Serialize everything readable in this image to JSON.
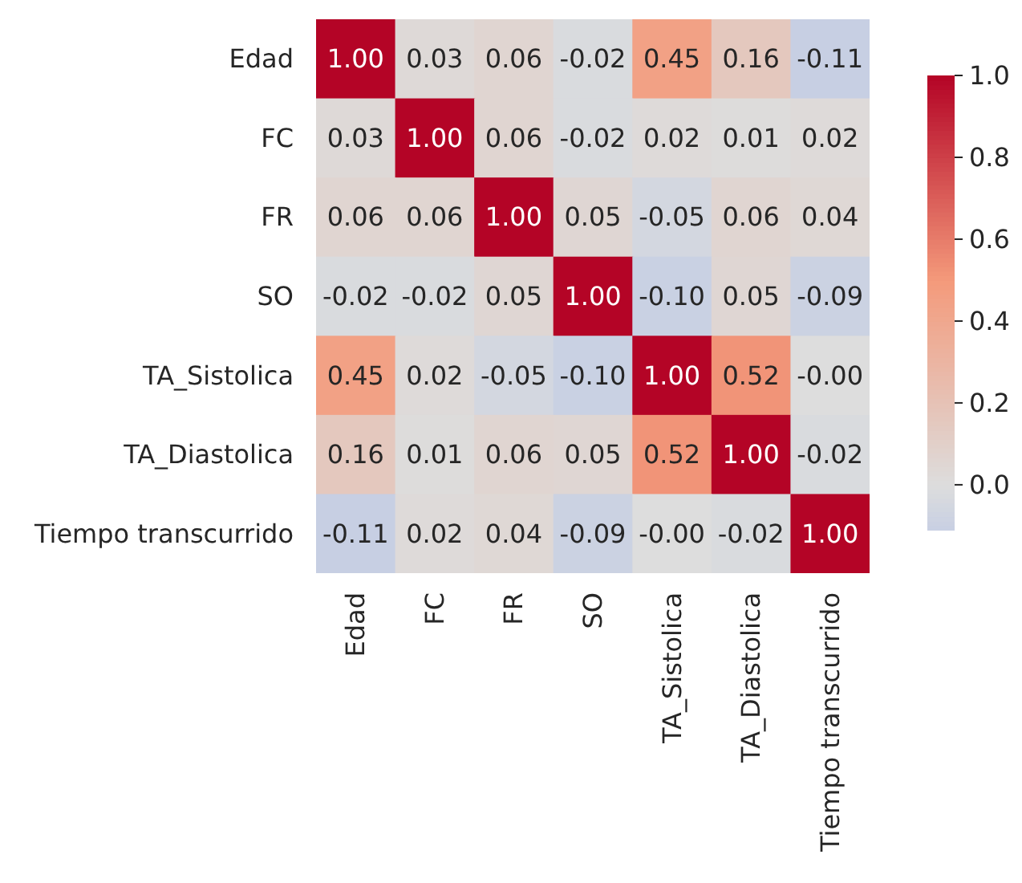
{
  "chart_data": {
    "type": "heatmap",
    "categories": [
      "Edad",
      "FC",
      "FR",
      "SO",
      "TA_Sistolica",
      "TA_Diastolica",
      "Tiempo transcurrido"
    ],
    "y_categories": [
      "Edad",
      "FC",
      "FR",
      "SO",
      "TA_Sistolica",
      "TA_Diastolica",
      "Tiempo transcurrido"
    ],
    "cells": [
      [
        1.0,
        0.03,
        0.06,
        -0.02,
        0.45,
        0.16,
        -0.11
      ],
      [
        0.03,
        1.0,
        0.06,
        -0.02,
        0.02,
        0.01,
        0.02
      ],
      [
        0.06,
        0.06,
        1.0,
        0.05,
        -0.05,
        0.06,
        0.04
      ],
      [
        -0.02,
        -0.02,
        0.05,
        1.0,
        -0.1,
        0.05,
        -0.09
      ],
      [
        0.45,
        0.02,
        -0.05,
        -0.1,
        1.0,
        0.52,
        0
      ],
      [
        0.16,
        0.01,
        0.06,
        0.05,
        0.52,
        1.0,
        -0.02
      ],
      [
        -0.11,
        0.02,
        0.04,
        -0.09,
        0,
        -0.02,
        1.0
      ]
    ],
    "cell_labels": [
      [
        "1.00",
        "0.03",
        "0.06",
        "-0.02",
        "0.45",
        "0.16",
        "-0.11"
      ],
      [
        "0.03",
        "1.00",
        "0.06",
        "-0.02",
        "0.02",
        "0.01",
        "0.02"
      ],
      [
        "0.06",
        "0.06",
        "1.00",
        "0.05",
        "-0.05",
        "0.06",
        "0.04"
      ],
      [
        "-0.02",
        "-0.02",
        "0.05",
        "1.00",
        "-0.10",
        "0.05",
        "-0.09"
      ],
      [
        "0.45",
        "0.02",
        "-0.05",
        "-0.10",
        "1.00",
        "0.52",
        "-0.00"
      ],
      [
        "0.16",
        "0.01",
        "0.06",
        "0.05",
        "0.52",
        "1.00",
        "-0.02"
      ],
      [
        "-0.11",
        "0.02",
        "0.04",
        "-0.09",
        "-0.00",
        "-0.02",
        "1.00"
      ]
    ],
    "clim": [
      -0.11,
      1.0
    ],
    "cticks": [
      {
        "value": 0,
        "label": "0.0"
      },
      {
        "value": 0.2,
        "label": "0.2"
      },
      {
        "value": 0.4,
        "label": "0.4"
      },
      {
        "value": 0.6,
        "label": "0.6"
      },
      {
        "value": 0.8,
        "label": "0.8"
      },
      {
        "value": 1,
        "label": "1.0"
      }
    ]
  }
}
